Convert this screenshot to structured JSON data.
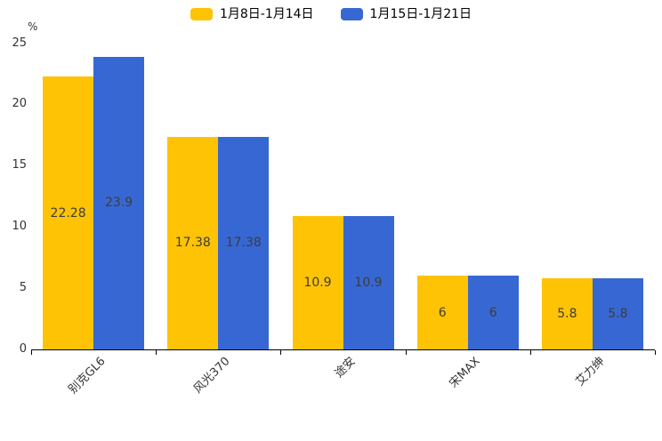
{
  "chart_data": {
    "type": "bar",
    "title": "",
    "categories": [
      "别克GL6",
      "风光370",
      "途安",
      "宋MAX",
      "艾力绅"
    ],
    "series": [
      {
        "name": "1月8日-1月14日",
        "color": "#fdc304",
        "values": [
          22.28,
          17.38,
          10.9,
          6,
          5.8
        ]
      },
      {
        "name": "1月15日-1月21日",
        "color": "#3767d2",
        "values": [
          23.9,
          17.38,
          10.9,
          6,
          5.8
        ]
      }
    ],
    "xlabel": "",
    "ylabel": "%",
    "ylim": [
      0,
      25
    ],
    "yticks": [
      0,
      5,
      10,
      15,
      20,
      25
    ],
    "grid": false,
    "legend_position": "top",
    "axis_color": "#000000",
    "label_color": "#3d3d3d",
    "tick_label_color": "#333333"
  }
}
